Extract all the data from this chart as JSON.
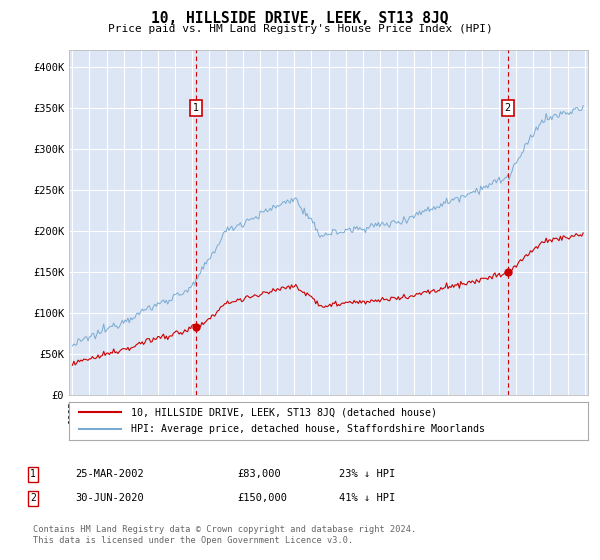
{
  "title": "10, HILLSIDE DRIVE, LEEK, ST13 8JQ",
  "subtitle": "Price paid vs. HM Land Registry's House Price Index (HPI)",
  "background_color": "#ffffff",
  "plot_bg_color": "#dce6f5",
  "grid_color": "#ffffff",
  "ylim": [
    0,
    420000
  ],
  "yticks": [
    0,
    50000,
    100000,
    150000,
    200000,
    250000,
    300000,
    350000,
    400000
  ],
  "ytick_labels": [
    "£0",
    "£50K",
    "£100K",
    "£150K",
    "£200K",
    "£250K",
    "£300K",
    "£350K",
    "£400K"
  ],
  "year_start": 1995,
  "year_end": 2025,
  "transaction1_date": 2002.23,
  "transaction1_price": 83000,
  "transaction1_label": "1",
  "transaction1_text": "25-MAR-2002",
  "transaction1_price_text": "£83,000",
  "transaction1_hpi_text": "23% ↓ HPI",
  "transaction2_date": 2020.5,
  "transaction2_price": 150000,
  "transaction2_label": "2",
  "transaction2_text": "30-JUN-2020",
  "transaction2_price_text": "£150,000",
  "transaction2_hpi_text": "41% ↓ HPI",
  "red_line_color": "#cc0000",
  "blue_line_color": "#7aaad0",
  "legend_line1": "10, HILLSIDE DRIVE, LEEK, ST13 8JQ (detached house)",
  "legend_line2": "HPI: Average price, detached house, Staffordshire Moorlands",
  "footer": "Contains HM Land Registry data © Crown copyright and database right 2024.\nThis data is licensed under the Open Government Licence v3.0."
}
